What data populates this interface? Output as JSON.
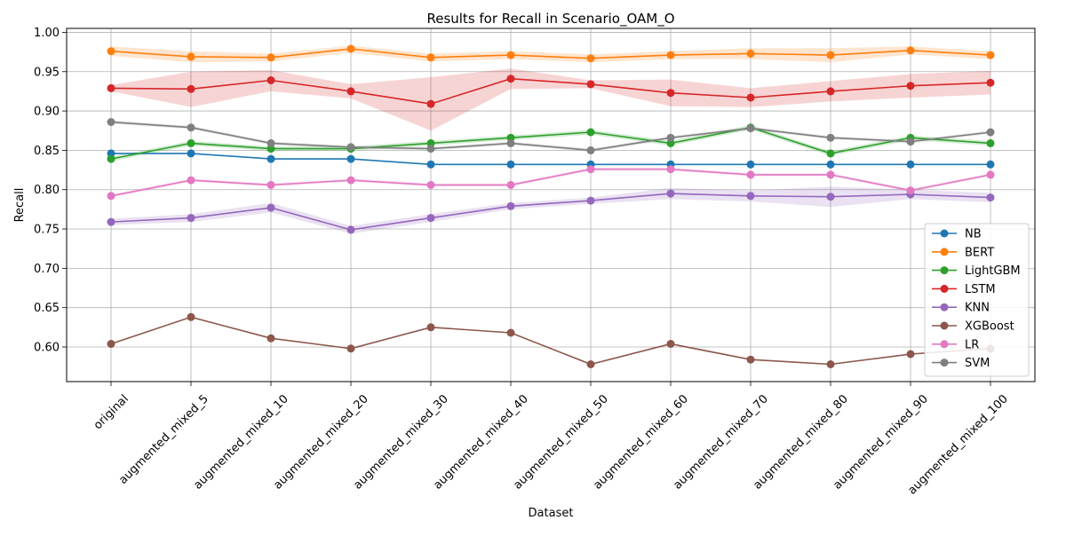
{
  "chart_data": {
    "type": "line",
    "title": "Results for Recall in Scenario_OAM_O",
    "xlabel": "Dataset",
    "ylabel": "Recall",
    "ylim": [
      0.556,
      1.005
    ],
    "yticks": [
      "0.60",
      "0.65",
      "0.70",
      "0.75",
      "0.80",
      "0.85",
      "0.90",
      "0.95",
      "1.00"
    ],
    "grid": true,
    "legend_position": "lower-right",
    "categories": [
      "original",
      "augmented_mixed_5",
      "augmented_mixed_10",
      "augmented_mixed_20",
      "augmented_mixed_30",
      "augmented_mixed_40",
      "augmented_mixed_50",
      "augmented_mixed_60",
      "augmented_mixed_70",
      "augmented_mixed_80",
      "augmented_mixed_90",
      "augmented_mixed_100"
    ],
    "series": [
      {
        "name": "NB",
        "color": "#1f77b4",
        "values": [
          0.846,
          0.846,
          0.839,
          0.839,
          0.832,
          0.832,
          0.832,
          0.832,
          0.832,
          0.832,
          0.832,
          0.832
        ],
        "band_low": [
          0.846,
          0.846,
          0.839,
          0.839,
          0.832,
          0.832,
          0.832,
          0.832,
          0.832,
          0.832,
          0.832,
          0.832
        ],
        "band_high": [
          0.846,
          0.846,
          0.839,
          0.839,
          0.832,
          0.832,
          0.832,
          0.832,
          0.832,
          0.832,
          0.832,
          0.832
        ]
      },
      {
        "name": "BERT",
        "color": "#ff7f0e",
        "values": [
          0.976,
          0.969,
          0.968,
          0.979,
          0.968,
          0.971,
          0.967,
          0.971,
          0.973,
          0.971,
          0.977,
          0.971
        ],
        "band_low": [
          0.97,
          0.962,
          0.963,
          0.974,
          0.963,
          0.966,
          0.962,
          0.966,
          0.966,
          0.962,
          0.972,
          0.966
        ],
        "band_high": [
          0.982,
          0.976,
          0.973,
          0.983,
          0.973,
          0.976,
          0.972,
          0.976,
          0.98,
          0.98,
          0.982,
          0.976
        ]
      },
      {
        "name": "LightGBM",
        "color": "#2ca02c",
        "values": [
          0.839,
          0.859,
          0.852,
          0.852,
          0.859,
          0.866,
          0.873,
          0.859,
          0.879,
          0.846,
          0.866,
          0.859
        ],
        "band_low": [
          0.836,
          0.856,
          0.849,
          0.849,
          0.856,
          0.863,
          0.87,
          0.856,
          0.876,
          0.843,
          0.863,
          0.856
        ],
        "band_high": [
          0.842,
          0.862,
          0.855,
          0.855,
          0.862,
          0.869,
          0.876,
          0.862,
          0.882,
          0.849,
          0.869,
          0.862
        ]
      },
      {
        "name": "LSTM",
        "color": "#d62728",
        "values": [
          0.929,
          0.928,
          0.939,
          0.925,
          0.909,
          0.941,
          0.934,
          0.923,
          0.917,
          0.925,
          0.932,
          0.936
        ],
        "band_low": [
          0.925,
          0.905,
          0.925,
          0.916,
          0.875,
          0.928,
          0.929,
          0.906,
          0.905,
          0.912,
          0.917,
          0.921
        ],
        "band_high": [
          0.933,
          0.95,
          0.952,
          0.934,
          0.943,
          0.954,
          0.939,
          0.94,
          0.929,
          0.938,
          0.947,
          0.951
        ]
      },
      {
        "name": "KNN",
        "color": "#9467bd",
        "values": [
          0.759,
          0.764,
          0.777,
          0.749,
          0.764,
          0.779,
          0.786,
          0.795,
          0.792,
          0.791,
          0.794,
          0.79
        ],
        "band_low": [
          0.755,
          0.759,
          0.771,
          0.744,
          0.759,
          0.775,
          0.782,
          0.788,
          0.785,
          0.778,
          0.788,
          0.784
        ],
        "band_high": [
          0.763,
          0.769,
          0.783,
          0.754,
          0.769,
          0.783,
          0.79,
          0.802,
          0.799,
          0.804,
          0.8,
          0.796
        ]
      },
      {
        "name": "XGBoost",
        "color": "#8c564b",
        "values": [
          0.604,
          0.638,
          0.611,
          0.598,
          0.625,
          0.618,
          0.578,
          0.604,
          0.584,
          0.578,
          0.591,
          0.598
        ],
        "band_low": [
          0.604,
          0.638,
          0.611,
          0.598,
          0.625,
          0.618,
          0.578,
          0.604,
          0.584,
          0.578,
          0.591,
          0.598
        ],
        "band_high": [
          0.604,
          0.638,
          0.611,
          0.598,
          0.625,
          0.618,
          0.578,
          0.604,
          0.584,
          0.578,
          0.591,
          0.598
        ]
      },
      {
        "name": "LR",
        "color": "#e377c2",
        "values": [
          0.792,
          0.812,
          0.806,
          0.812,
          0.806,
          0.806,
          0.826,
          0.826,
          0.819,
          0.819,
          0.799,
          0.819
        ],
        "band_low": [
          0.79,
          0.81,
          0.804,
          0.81,
          0.804,
          0.804,
          0.824,
          0.824,
          0.817,
          0.817,
          0.797,
          0.817
        ],
        "band_high": [
          0.794,
          0.814,
          0.808,
          0.814,
          0.808,
          0.808,
          0.828,
          0.828,
          0.821,
          0.821,
          0.801,
          0.821
        ]
      },
      {
        "name": "SVM",
        "color": "#7f7f7f",
        "values": [
          0.886,
          0.879,
          0.859,
          0.854,
          0.852,
          0.859,
          0.85,
          0.866,
          0.878,
          0.866,
          0.861,
          0.873
        ],
        "band_low": [
          0.884,
          0.877,
          0.857,
          0.852,
          0.85,
          0.857,
          0.848,
          0.864,
          0.876,
          0.864,
          0.859,
          0.871
        ],
        "band_high": [
          0.888,
          0.881,
          0.861,
          0.856,
          0.854,
          0.861,
          0.852,
          0.868,
          0.88,
          0.868,
          0.863,
          0.875
        ]
      }
    ]
  }
}
